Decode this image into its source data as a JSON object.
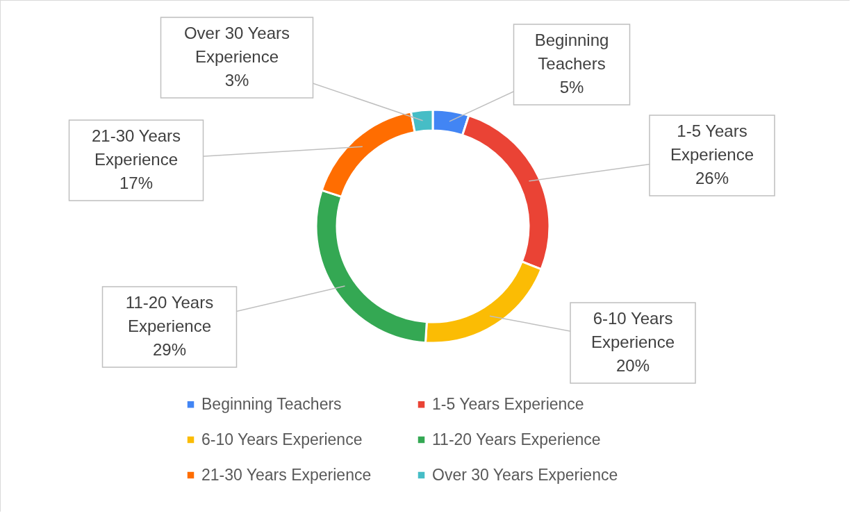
{
  "chart_data": {
    "type": "donut",
    "categories": [
      "Beginning Teachers",
      "1-5 Years Experience",
      "6-10 Years Experience",
      "11-20 Years Experience",
      "21-30 Years Experience",
      "Over 30 Years Experience"
    ],
    "values": [
      5,
      26,
      20,
      29,
      17,
      3
    ],
    "value_labels": [
      "5%",
      "26%",
      "20%",
      "29%",
      "17%",
      "3%"
    ],
    "colors": [
      "#4285f4",
      "#ea4335",
      "#fbbc04",
      "#34a853",
      "#ff6d01",
      "#46bdc6"
    ],
    "legend": "bottom"
  }
}
